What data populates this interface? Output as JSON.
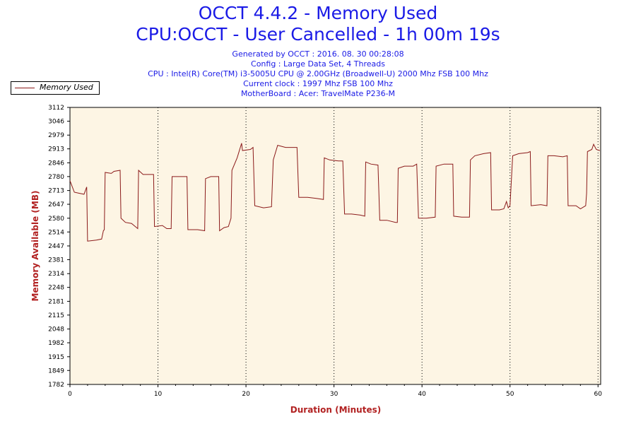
{
  "header": {
    "title": "OCCT 4.4.2 - Memory Used",
    "subtitle": "CPU:OCCT - User Cancelled - 1h 00m 19s",
    "info": [
      "Generated by OCCT : 2016. 08. 30 00:28:08",
      "Config : Large Data Set, 4 Threads",
      "CPU : Intel(R) Core(TM) i3-5005U CPU @ 2.00GHz (Broadwell-U) 2000 Mhz FSB 100 Mhz",
      "Current clock : 1997 Mhz FSB 100 Mhz",
      "MotherBoard : Acer: TravelMate P236-M"
    ]
  },
  "legend": {
    "label": "Memory Used"
  },
  "colors": {
    "line": "#8b1a1a",
    "plot_bg": "#fdf5e4",
    "title": "#1a1ae6",
    "axis_label": "#b22222"
  },
  "chart_data": {
    "type": "line",
    "title": "OCCT 4.4.2 - Memory Used",
    "xlabel": "Duration (Minutes)",
    "ylabel": "Memory Available (MB)",
    "xlim": [
      0,
      60.3
    ],
    "ylim": [
      1782,
      3112
    ],
    "x_ticks": [
      0,
      10,
      20,
      30,
      40,
      50,
      60
    ],
    "y_ticks": [
      1782,
      1849,
      1915,
      1982,
      2048,
      2115,
      2181,
      2248,
      2314,
      2381,
      2447,
      2514,
      2580,
      2647,
      2713,
      2780,
      2846,
      2913,
      2979,
      3046,
      3112
    ],
    "grid": "vertical dotted",
    "legend_position": "top-left",
    "series": [
      {
        "name": "Memory Used",
        "points": [
          [
            0,
            2760
          ],
          [
            0.5,
            2705
          ],
          [
            1.0,
            2700
          ],
          [
            1.6,
            2695
          ],
          [
            1.9,
            2730
          ],
          [
            2.0,
            2470
          ],
          [
            3.0,
            2475
          ],
          [
            3.6,
            2480
          ],
          [
            3.8,
            2520
          ],
          [
            3.9,
            2525
          ],
          [
            4.0,
            2800
          ],
          [
            4.7,
            2795
          ],
          [
            5.0,
            2805
          ],
          [
            5.7,
            2810
          ],
          [
            5.8,
            2580
          ],
          [
            6.3,
            2560
          ],
          [
            7.0,
            2555
          ],
          [
            7.7,
            2530
          ],
          [
            7.8,
            2810
          ],
          [
            8.3,
            2790
          ],
          [
            9.5,
            2790
          ],
          [
            9.6,
            2540
          ],
          [
            10.5,
            2545
          ],
          [
            11.0,
            2530
          ],
          [
            11.5,
            2530
          ],
          [
            11.6,
            2780
          ],
          [
            12.5,
            2780
          ],
          [
            13.3,
            2780
          ],
          [
            13.4,
            2525
          ],
          [
            14.5,
            2525
          ],
          [
            15.3,
            2520
          ],
          [
            15.4,
            2770
          ],
          [
            16.0,
            2780
          ],
          [
            16.9,
            2780
          ],
          [
            17.0,
            2520
          ],
          [
            17.5,
            2535
          ],
          [
            18.0,
            2540
          ],
          [
            18.3,
            2580
          ],
          [
            18.4,
            2810
          ],
          [
            19.0,
            2870
          ],
          [
            19.5,
            2940
          ],
          [
            19.6,
            2905
          ],
          [
            20.5,
            2910
          ],
          [
            20.8,
            2920
          ],
          [
            21.0,
            2640
          ],
          [
            22.0,
            2630
          ],
          [
            22.9,
            2635
          ],
          [
            23.1,
            2860
          ],
          [
            23.6,
            2930
          ],
          [
            24.5,
            2920
          ],
          [
            25.8,
            2920
          ],
          [
            26.0,
            2680
          ],
          [
            27.0,
            2680
          ],
          [
            28.0,
            2675
          ],
          [
            28.8,
            2670
          ],
          [
            28.9,
            2870
          ],
          [
            29.5,
            2860
          ],
          [
            30.5,
            2855
          ],
          [
            31.0,
            2855
          ],
          [
            31.2,
            2600
          ],
          [
            32.0,
            2600
          ],
          [
            33.0,
            2595
          ],
          [
            33.5,
            2590
          ],
          [
            33.6,
            2850
          ],
          [
            34.2,
            2840
          ],
          [
            35.0,
            2835
          ],
          [
            35.2,
            2570
          ],
          [
            36.0,
            2570
          ],
          [
            37.0,
            2560
          ],
          [
            37.2,
            2560
          ],
          [
            37.3,
            2820
          ],
          [
            38.0,
            2830
          ],
          [
            39.0,
            2830
          ],
          [
            39.4,
            2840
          ],
          [
            39.6,
            2580
          ],
          [
            40.5,
            2580
          ],
          [
            41.5,
            2585
          ],
          [
            41.6,
            2830
          ],
          [
            42.5,
            2840
          ],
          [
            43.5,
            2840
          ],
          [
            43.6,
            2590
          ],
          [
            44.5,
            2585
          ],
          [
            45.4,
            2585
          ],
          [
            45.5,
            2860
          ],
          [
            46.0,
            2880
          ],
          [
            47.0,
            2890
          ],
          [
            47.8,
            2895
          ],
          [
            47.9,
            2620
          ],
          [
            48.8,
            2620
          ],
          [
            49.3,
            2625
          ],
          [
            49.6,
            2660
          ],
          [
            49.8,
            2630
          ],
          [
            50.0,
            2640
          ],
          [
            50.3,
            2880
          ],
          [
            51.0,
            2890
          ],
          [
            52.0,
            2895
          ],
          [
            52.3,
            2900
          ],
          [
            52.4,
            2640
          ],
          [
            53.5,
            2645
          ],
          [
            54.2,
            2640
          ],
          [
            54.3,
            2880
          ],
          [
            55.0,
            2880
          ],
          [
            56.0,
            2875
          ],
          [
            56.5,
            2880
          ],
          [
            56.6,
            2640
          ],
          [
            57.5,
            2640
          ],
          [
            58.0,
            2625
          ],
          [
            58.6,
            2640
          ],
          [
            58.7,
            2700
          ],
          [
            58.8,
            2900
          ],
          [
            59.3,
            2910
          ],
          [
            59.5,
            2935
          ],
          [
            59.8,
            2910
          ],
          [
            60.2,
            2905
          ]
        ]
      }
    ]
  }
}
